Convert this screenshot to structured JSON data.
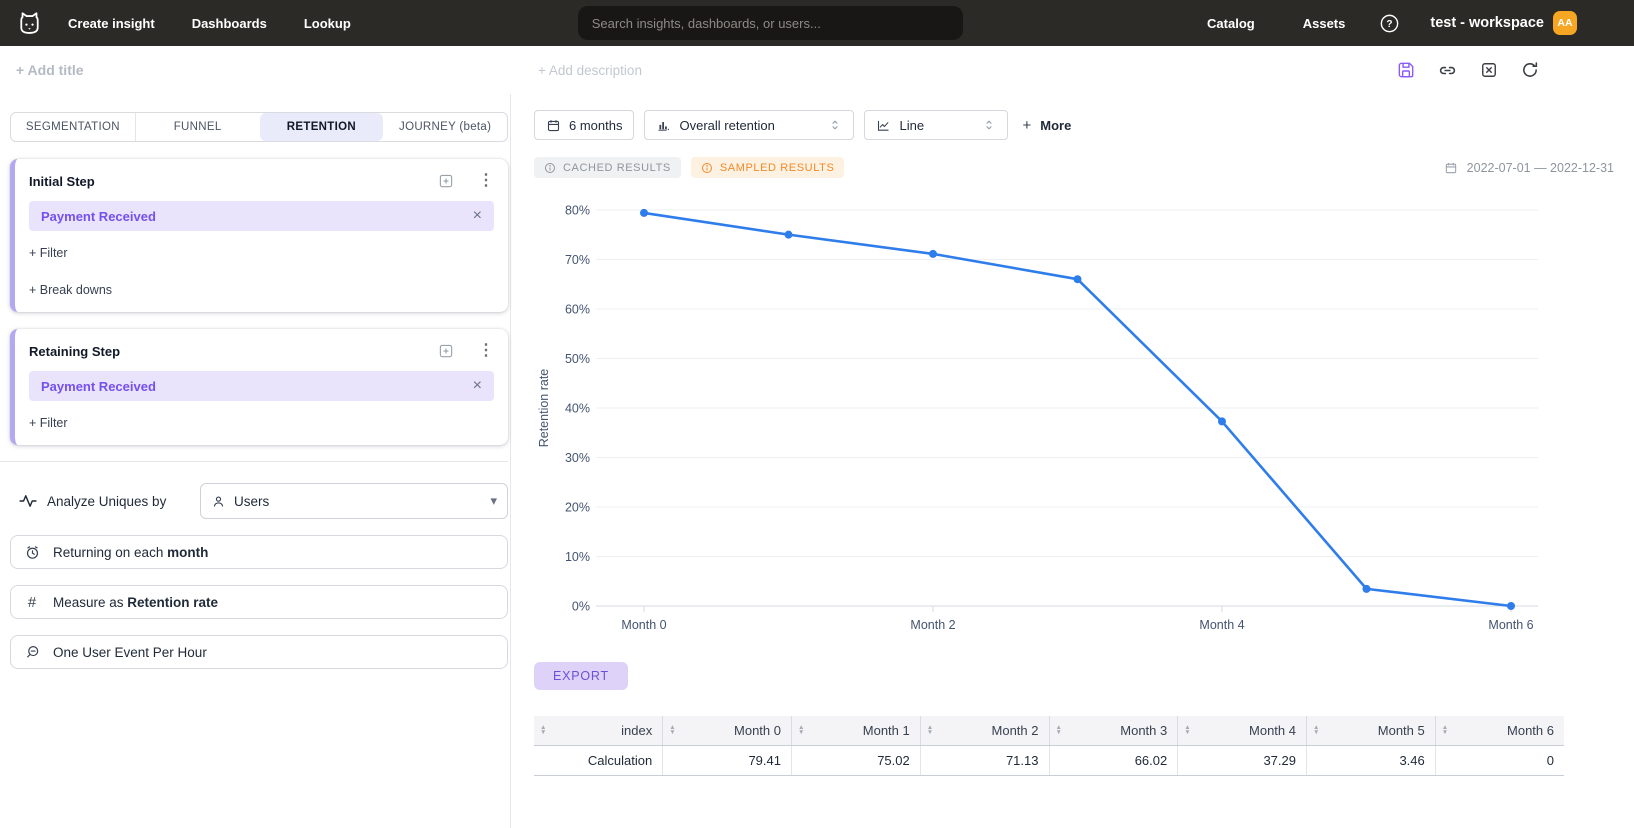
{
  "navbar": {
    "links": [
      {
        "label": "Create insight"
      },
      {
        "label": "Dashboards"
      },
      {
        "label": "Lookup"
      }
    ],
    "search_placeholder": "Search insights, dashboards, or users...",
    "right_links": [
      {
        "label": "Catalog"
      },
      {
        "label": "Assets"
      }
    ],
    "workspace_name": "test - workspace",
    "avatar_initials": "AA",
    "avatar_color": "#f6a623"
  },
  "subheader": {
    "add_title_placeholder": "+ Add title",
    "add_description_placeholder": "+ Add description"
  },
  "left_panel": {
    "tabs": [
      {
        "label": "SEGMENTATION",
        "active": false
      },
      {
        "label": "FUNNEL",
        "active": false
      },
      {
        "label": "RETENTION",
        "active": true
      },
      {
        "label": "JOURNEY (beta)",
        "active": false
      }
    ],
    "initial_step": {
      "title": "Initial Step",
      "event_chip": "Payment Received",
      "add_filter": "+ Filter",
      "add_breakdown": "+ Break downs"
    },
    "retaining_step": {
      "title": "Retaining Step",
      "event_chip": "Payment Received",
      "add_filter": "+ Filter"
    },
    "analyze": {
      "label": "Analyze Uniques by",
      "selected_value": "Users"
    },
    "period_button": {
      "prefix": "Returning on each ",
      "bold": "month"
    },
    "measure_button": {
      "prefix": "Measure as ",
      "bold": "Retention rate"
    },
    "aggregation_button": {
      "label": "One User Event Per Hour"
    }
  },
  "toolbar": {
    "date_window": "6 months",
    "metric": "Overall retention",
    "chart_type": "Line",
    "more": {
      "plus": "+",
      "label": "More"
    }
  },
  "status_row": {
    "cached_badge": "CACHED RESULTS",
    "sampled_badge": "SAMPLED RESULTS",
    "sampled_color": "#ef8b2b",
    "date_range": "2022-07-01 — 2022-12-31"
  },
  "chart_data": {
    "type": "line",
    "title": "",
    "categories": [
      "Month 0",
      "Month 1",
      "Month 2",
      "Month 3",
      "Month 4",
      "Month 5",
      "Month 6"
    ],
    "series": [
      {
        "name": "Calculation",
        "values": [
          79.41,
          75.02,
          71.13,
          66.02,
          37.29,
          3.46,
          0
        ]
      }
    ],
    "xlabel": "",
    "ylabel": "Retention rate",
    "ylim": [
      0,
      80
    ],
    "y_tick_step": 10,
    "y_tick_suffix": "%",
    "x_label_every": 2,
    "grid": true,
    "legend": false,
    "line_color": "#2e7deb",
    "marker_radius": 4
  },
  "export_button": "EXPORT",
  "table": {
    "headers": [
      "index",
      "Month 0",
      "Month 1",
      "Month 2",
      "Month 3",
      "Month 4",
      "Month 5",
      "Month 6"
    ],
    "rows": [
      [
        "Calculation",
        "79.41",
        "75.02",
        "71.13",
        "66.02",
        "37.29",
        "3.46",
        "0"
      ]
    ]
  },
  "icons": {
    "kebab": "⋮",
    "close": "×",
    "caret_down": "▾"
  }
}
